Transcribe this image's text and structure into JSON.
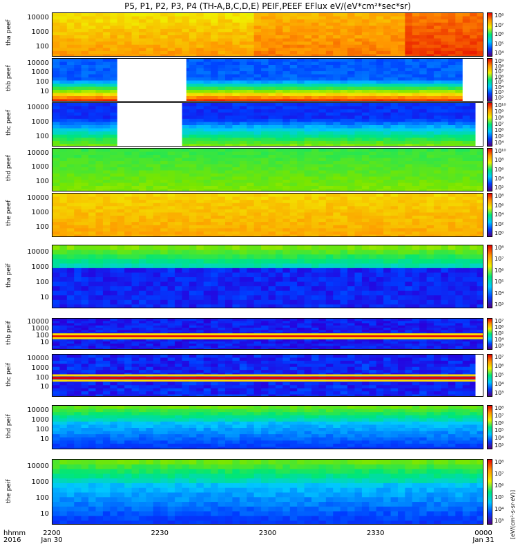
{
  "chart_data": {
    "type": "heatmap",
    "title": "P5, P1, P2, P3, P4 (TH-A,B,C,D,E) PEIF,PEEF EFlux eV/(eV*cm²*sec*sr)",
    "x_ticks": [
      "2200",
      "2230",
      "2300",
      "2330",
      "0000"
    ],
    "x_subticks": [
      "Jan 30",
      "",
      "",
      "",
      "Jan 31"
    ],
    "x_range": [
      "2016-01-30 22:00",
      "2016-01-31 00:00"
    ],
    "corner_labels": [
      "hhmm",
      "2016"
    ],
    "colorbar_label": "[eV/(cm²-s-sr-eV)]",
    "panels": [
      {
        "label": "tha peef",
        "yticks": [
          "10000",
          "1000",
          "100"
        ],
        "cb_ticks": [
          "10⁸",
          "10⁷",
          "10⁶",
          "10⁵",
          "10⁴"
        ],
        "style": "orange"
      },
      {
        "label": "thb peef",
        "yticks": [
          "10000",
          "1000",
          "100",
          "10"
        ],
        "cb_ticks": [
          "10⁹",
          "10⁸",
          "10⁷",
          "10⁶",
          "10⁵",
          "10⁴",
          "10³",
          "10²"
        ],
        "style": "rainbow",
        "gaps": [
          [
            0.15,
            0.31
          ],
          [
            0.95,
            1.0
          ]
        ]
      },
      {
        "label": "thc peef",
        "yticks": [
          "10000",
          "1000",
          "100"
        ],
        "cb_ticks": [
          "10¹⁰",
          "10⁹",
          "10⁸",
          "10⁷",
          "10⁶",
          "10⁵",
          "10⁴"
        ],
        "style": "bluegreen",
        "gaps": [
          [
            0.15,
            0.3
          ],
          [
            0.98,
            1.0
          ]
        ]
      },
      {
        "label": "thd peef",
        "yticks": [
          "10000",
          "1000",
          "100"
        ],
        "cb_ticks": [
          "10¹⁰",
          "10⁸",
          "10⁶",
          "10⁴",
          "10²"
        ],
        "style": "green"
      },
      {
        "label": "the peef",
        "yticks": [
          "10000",
          "1000",
          "100"
        ],
        "cb_ticks": [
          "10⁸",
          "10⁶",
          "10⁴",
          "10²",
          "10⁰"
        ],
        "style": "orange2"
      },
      {
        "label": "tha peif",
        "yticks": [
          "10000",
          "1000",
          "100",
          "10"
        ],
        "cb_ticks": [
          "10⁸",
          "10⁷",
          "10⁶",
          "10⁵",
          "10⁴",
          "10³"
        ],
        "style": "ion"
      },
      {
        "label": "thb peif",
        "yticks": [
          "10000",
          "1000",
          "100",
          "10"
        ],
        "cb_ticks": [
          "10⁷",
          "10⁶",
          "10⁵",
          "10⁴",
          "10³"
        ],
        "style": "ionband"
      },
      {
        "label": "thc peif",
        "yticks": [
          "10000",
          "1000",
          "100",
          "10"
        ],
        "cb_ticks": [
          "10⁷",
          "10⁶",
          "10⁵",
          "10⁴",
          "10³"
        ],
        "style": "ionband2",
        "gaps": [
          [
            0.98,
            1.0
          ]
        ]
      },
      {
        "label": "thd peif",
        "yticks": [
          "10000",
          "1000",
          "100",
          "10"
        ],
        "cb_ticks": [
          "10⁸",
          "10⁷",
          "10⁶",
          "10⁵",
          "10⁴",
          "10³"
        ],
        "style": "ion2"
      },
      {
        "label": "the peif",
        "yticks": [
          "10000",
          "1000",
          "100",
          "10"
        ],
        "cb_ticks": [
          "10⁸",
          "10⁷",
          "10⁶",
          "10⁵",
          "10⁴",
          "10³"
        ],
        "style": "ion2"
      }
    ]
  }
}
